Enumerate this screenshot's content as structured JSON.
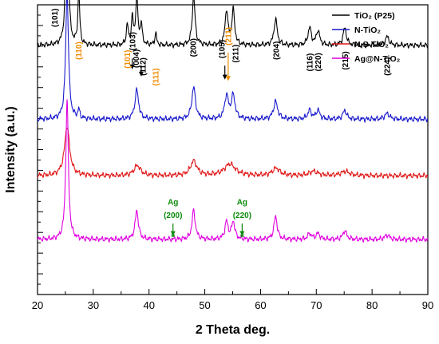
{
  "chart_data": {
    "type": "line",
    "title": "",
    "xlabel": "2 Theta deg.",
    "ylabel": "Intensity (a.u.)",
    "xlim": [
      20,
      90
    ],
    "x_ticks": [
      "20",
      "30",
      "40",
      "50",
      "60",
      "70",
      "80",
      "90"
    ],
    "grid": false,
    "legend_position": "top-right",
    "series": [
      {
        "name": "TiO₂ (P25)",
        "color": "#000000",
        "baseline": 0.86,
        "peaks": [
          [
            25.3,
            0.75,
            0.22
          ],
          [
            27.4,
            0.18,
            0.2
          ],
          [
            36.1,
            0.07,
            0.2
          ],
          [
            37.0,
            0.09,
            0.2
          ],
          [
            37.8,
            0.16,
            0.25
          ],
          [
            38.6,
            0.07,
            0.2
          ],
          [
            41.2,
            0.04,
            0.2
          ],
          [
            48.0,
            0.17,
            0.3
          ],
          [
            53.9,
            0.12,
            0.3
          ],
          [
            55.1,
            0.12,
            0.3
          ],
          [
            62.7,
            0.09,
            0.35
          ],
          [
            68.8,
            0.06,
            0.35
          ],
          [
            70.3,
            0.05,
            0.35
          ],
          [
            75.1,
            0.06,
            0.35
          ],
          [
            82.7,
            0.03,
            0.4
          ]
        ]
      },
      {
        "name": "N-TiO₂",
        "color": "#1a1acc",
        "baseline": 0.605,
        "peaks": [
          [
            25.3,
            0.44,
            0.3
          ],
          [
            27.4,
            0.03,
            0.2
          ],
          [
            37.8,
            0.1,
            0.4
          ],
          [
            48.0,
            0.11,
            0.4
          ],
          [
            53.9,
            0.08,
            0.4
          ],
          [
            55.1,
            0.08,
            0.4
          ],
          [
            62.7,
            0.06,
            0.45
          ],
          [
            68.8,
            0.03,
            0.4
          ],
          [
            70.3,
            0.03,
            0.4
          ],
          [
            75.1,
            0.03,
            0.4
          ],
          [
            82.7,
            0.02,
            0.5
          ]
        ]
      },
      {
        "name": "N,S-TiO₂",
        "color": "#e01818",
        "baseline": 0.41,
        "peaks": [
          [
            25.3,
            0.17,
            0.55
          ],
          [
            37.9,
            0.035,
            0.7
          ],
          [
            48.0,
            0.05,
            0.7
          ],
          [
            54.5,
            0.04,
            1.2
          ],
          [
            62.8,
            0.025,
            0.8
          ],
          [
            69.5,
            0.015,
            0.9
          ],
          [
            75.2,
            0.015,
            0.9
          ]
        ]
      },
      {
        "name": "Ag@N-TiO₂",
        "color": "#e000e0",
        "baseline": 0.19,
        "peaks": [
          [
            25.3,
            0.48,
            0.28
          ],
          [
            37.8,
            0.1,
            0.35
          ],
          [
            48.0,
            0.1,
            0.35
          ],
          [
            53.9,
            0.06,
            0.35
          ],
          [
            55.1,
            0.06,
            0.35
          ],
          [
            62.7,
            0.08,
            0.35
          ],
          [
            68.8,
            0.02,
            0.4
          ],
          [
            70.3,
            0.02,
            0.4
          ],
          [
            75.1,
            0.03,
            0.4
          ],
          [
            82.7,
            0.015,
            0.5
          ]
        ]
      }
    ],
    "annotations": [
      {
        "text": "(101)",
        "x": 23.1,
        "y_text": 0.923,
        "color": "#000000",
        "rotate": true
      },
      {
        "text": "(110)",
        "x": 27.4,
        "y_text": 0.81,
        "color": "#f08c00",
        "rotate": true
      },
      {
        "text": "(103)",
        "x": 37.0,
        "y_text": 0.842,
        "color": "#000000",
        "rotate": true
      },
      {
        "text": "(101)",
        "x": 36.1,
        "y_text": 0.78,
        "color": "#f08c00",
        "rotate": true
      },
      {
        "text": "(004)",
        "x": 37.7,
        "y_text": 0.782,
        "color": "#000000",
        "rotate": true
      },
      {
        "text": "(112)",
        "x": 38.9,
        "y_text": 0.755,
        "color": "#000000",
        "rotate": true
      },
      {
        "text": "(111)",
        "x": 41.2,
        "y_text": 0.72,
        "color": "#f08c00",
        "rotate": true
      },
      {
        "text": "(200)",
        "x": 47.9,
        "y_text": 0.82,
        "color": "#000000",
        "rotate": true
      },
      {
        "text": "(105)",
        "x": 53.1,
        "y_text": 0.815,
        "color": "#000000",
        "rotate": true
      },
      {
        "text": "(211)",
        "x": 54.2,
        "y_text": 0.86,
        "color": "#f08c00",
        "rotate": true
      },
      {
        "text": "(211)",
        "x": 55.5,
        "y_text": 0.8,
        "color": "#000000",
        "rotate": true
      },
      {
        "text": "(204)",
        "x": 62.8,
        "y_text": 0.81,
        "color": "#000000",
        "rotate": true
      },
      {
        "text": "(116)",
        "x": 68.8,
        "y_text": 0.77,
        "color": "#000000",
        "rotate": true
      },
      {
        "text": "(220)",
        "x": 70.3,
        "y_text": 0.77,
        "color": "#000000",
        "rotate": true
      },
      {
        "text": "(215)",
        "x": 75.2,
        "y_text": 0.775,
        "color": "#000000",
        "rotate": true
      },
      {
        "text": "(224)",
        "x": 82.7,
        "y_text": 0.755,
        "color": "#000000",
        "rotate": true
      },
      {
        "text": "Ag",
        "x": 44.3,
        "y_text": 0.31,
        "color": "#0a8a0a",
        "rotate": false
      },
      {
        "text": "(200)",
        "x": 44.3,
        "y_text": 0.265,
        "color": "#0a8a0a",
        "rotate": false
      },
      {
        "text": "Ag",
        "x": 56.7,
        "y_text": 0.31,
        "color": "#0a8a0a",
        "rotate": false
      },
      {
        "text": "(220)",
        "x": 56.7,
        "y_text": 0.265,
        "color": "#0a8a0a",
        "rotate": false
      }
    ],
    "markers": [
      {
        "text": "*",
        "x": 44.3,
        "y": 0.2,
        "color": "#0a8a0a"
      },
      {
        "text": "*",
        "x": 56.7,
        "y": 0.2,
        "color": "#0a8a0a"
      }
    ],
    "arrows": [
      {
        "x": 37.0,
        "y_from": 0.815,
        "y_to": 0.78,
        "color": "#000000"
      },
      {
        "x": 38.6,
        "y_from": 0.79,
        "y_to": 0.755,
        "color": "#000000"
      },
      {
        "x": 53.6,
        "y_from": 0.79,
        "y_to": 0.745,
        "color": "#000000"
      },
      {
        "x": 54.2,
        "y_from": 0.835,
        "y_to": 0.74,
        "color": "#f08c00"
      },
      {
        "x": 44.3,
        "y_from": 0.245,
        "y_to": 0.205,
        "color": "#0a8a0a"
      },
      {
        "x": 56.7,
        "y_from": 0.245,
        "y_to": 0.205,
        "color": "#0a8a0a"
      }
    ]
  }
}
